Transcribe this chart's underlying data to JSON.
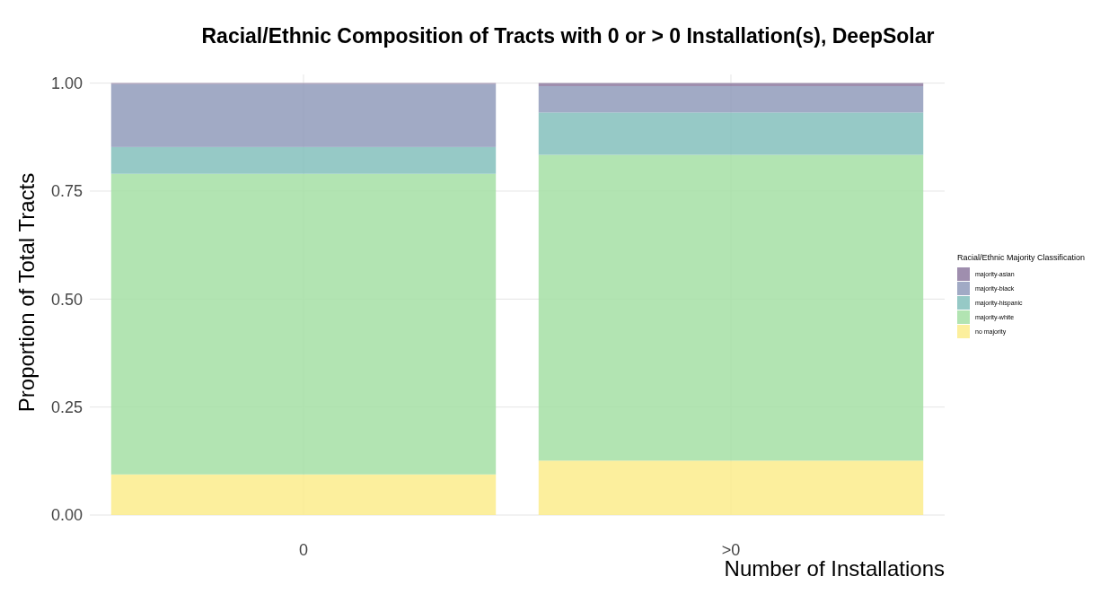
{
  "chart_data": {
    "type": "bar",
    "title": "Racial/Ethnic Composition of Tracts with 0 or > 0 Installation(s), DeepSolar",
    "xlabel": "Number of Installations",
    "ylabel": "Proportion of Total Tracts",
    "legend_title": "Racial/Ethnic Majority Classification",
    "categories": [
      "0",
      ">0"
    ],
    "stacked": true,
    "ylim": [
      0,
      1.02
    ],
    "yticks": [
      {
        "value": 0,
        "label": "0.00"
      },
      {
        "value": 0.25,
        "label": "0.25"
      },
      {
        "value": 0.5,
        "label": "0.50"
      },
      {
        "value": 0.75,
        "label": "0.75"
      },
      {
        "value": 1,
        "label": "1.00"
      }
    ],
    "grid": true,
    "legend": "right",
    "series": [
      {
        "name": "no majority",
        "color": "#fbec8c",
        "values": [
          0.094,
          0.126
        ]
      },
      {
        "name": "majority-white",
        "color": "#a5dfa5",
        "values": [
          0.696,
          0.708
        ]
      },
      {
        "name": "majority-hispanic",
        "color": "#84bfbc",
        "values": [
          0.062,
          0.098
        ]
      },
      {
        "name": "majority-black",
        "color": "#919bbb",
        "values": [
          0.146,
          0.061
        ]
      },
      {
        "name": "majority-asian",
        "color": "#8e7aa0",
        "values": [
          0.002,
          0.007
        ]
      }
    ]
  }
}
